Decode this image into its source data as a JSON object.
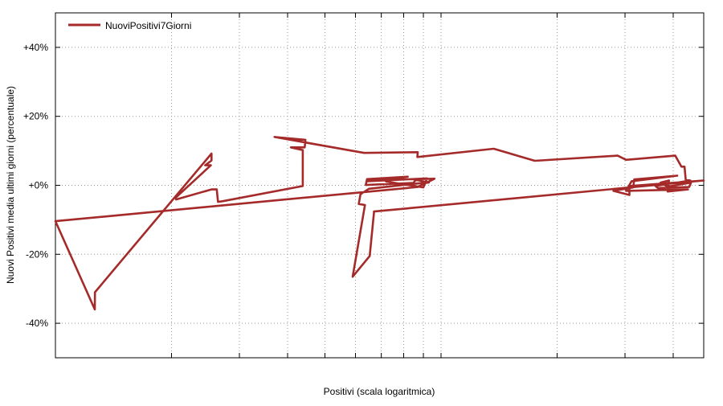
{
  "chart_data": {
    "type": "line",
    "title": "",
    "xlabel": "Positivi (scala logaritmica)",
    "ylabel": "Nuovi Positivi media ultimi giorni (percentuale)",
    "x_scale": "log",
    "x_tick_labels_shown": false,
    "ylim": [
      -50,
      50
    ],
    "y_ticks": [
      -40,
      -20,
      0,
      20,
      40
    ],
    "y_tick_labels": [
      "-40%",
      "-20%",
      "+0%",
      "+20%",
      "+40%"
    ],
    "grid": true,
    "legend_position": "top-left",
    "series": [
      {
        "name": "NuoviPositivi7Giorni",
        "color": "#a52a2a",
        "points": [
          [
            1.0,
            -10.4
          ],
          [
            1.265,
            -36.0
          ],
          [
            1.266,
            -31.0
          ],
          [
            2.54,
            9.2
          ],
          [
            2.54,
            7.2
          ],
          [
            2.445,
            5.8
          ],
          [
            2.53,
            5.8
          ],
          [
            2.05,
            -3.6
          ],
          [
            2.055,
            -4.1
          ],
          [
            2.54,
            -1.2
          ],
          [
            2.62,
            -1.2
          ],
          [
            2.64,
            -4.8
          ],
          [
            2.72,
            -4.6
          ],
          [
            4.38,
            -0.2
          ],
          [
            4.38,
            10.2
          ],
          [
            4.08,
            11.0
          ],
          [
            4.43,
            11.0
          ],
          [
            4.45,
            13.2
          ],
          [
            3.7,
            14.0
          ],
          [
            6.32,
            9.4
          ],
          [
            8.7,
            9.6
          ],
          [
            8.68,
            8.2
          ],
          [
            13.7,
            10.6
          ],
          [
            17.5,
            7.1
          ],
          [
            28.7,
            8.6
          ],
          [
            30.2,
            7.4
          ],
          [
            40.5,
            8.6
          ],
          [
            42.0,
            5.4
          ],
          [
            42.8,
            5.4
          ],
          [
            43.1,
            1.6
          ],
          [
            44.3,
            1.4
          ],
          [
            36.0,
            -0.2
          ],
          [
            36.5,
            -0.8
          ],
          [
            44.0,
            -0.5
          ],
          [
            44.5,
            0.8
          ],
          [
            38.7,
            -0.4
          ],
          [
            37.1,
            0.8
          ],
          [
            39.0,
            1.4
          ],
          [
            38.7,
            -1.8
          ],
          [
            43.7,
            -1.2
          ],
          [
            30.2,
            -1.6
          ],
          [
            31.2,
            1.2
          ],
          [
            41.0,
            2.8
          ],
          [
            31.7,
            1.7
          ],
          [
            31.5,
            -0.6
          ],
          [
            28.0,
            -1.6
          ],
          [
            30.8,
            -2.8
          ],
          [
            30.8,
            -0.2
          ],
          [
            48.0,
            1.4
          ],
          [
            6.7,
            -7.6
          ],
          [
            6.7,
            -8.0
          ],
          [
            6.53,
            -20.5
          ],
          [
            5.9,
            -26.5
          ],
          [
            6.35,
            -5.7
          ],
          [
            6.12,
            -5.4
          ],
          [
            6.18,
            -2.6
          ],
          [
            6.5,
            -1.0
          ],
          [
            8.8,
            0.6
          ],
          [
            9.3,
            0.8
          ],
          [
            8.6,
            1.6
          ],
          [
            8.48,
            0.7
          ],
          [
            6.38,
            0.1
          ],
          [
            6.43,
            1.8
          ],
          [
            8.2,
            2.5
          ],
          [
            6.43,
            1.2
          ],
          [
            9.2,
            2.0
          ],
          [
            9.0,
            -0.6
          ],
          [
            7.2,
            1.1
          ],
          [
            7.2,
            1.6
          ],
          [
            9.62,
            1.9
          ],
          [
            8.7,
            -0.5
          ],
          [
            1.0,
            -10.4
          ]
        ]
      }
    ]
  }
}
